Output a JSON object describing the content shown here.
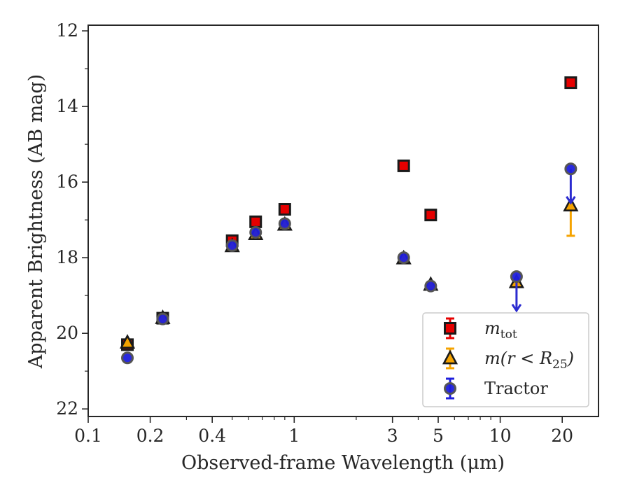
{
  "chart_data": {
    "type": "scatter",
    "xlabel": "Observed-frame Wavelength (μm)",
    "ylabel": "Apparent Brightness (AB mag)",
    "xscale": "log",
    "yaxis_inverted": true,
    "xlim": [
      0.1,
      30
    ],
    "ylim": [
      22.2,
      11.85
    ],
    "xticks": [
      0.1,
      0.2,
      0.4,
      1,
      3,
      5,
      10,
      20
    ],
    "xtick_labels": [
      "0.1",
      "0.2",
      "0.4",
      "1",
      "3",
      "5",
      "10",
      "20"
    ],
    "yticks": [
      12,
      14,
      16,
      18,
      20,
      22
    ],
    "ytick_labels": [
      "12",
      "14",
      "16",
      "18",
      "20",
      "22"
    ],
    "grid": false,
    "legend_position": "lower-right",
    "series": [
      {
        "name": "m_tot",
        "legend_label": "m",
        "legend_sub": "tot",
        "marker": "square",
        "color": "#e60000",
        "edge_color": "#1a1a1a",
        "points": [
          {
            "x": 0.155,
            "y": 20.3
          },
          {
            "x": 0.23,
            "y": 19.6
          },
          {
            "x": 0.5,
            "y": 17.55
          },
          {
            "x": 0.65,
            "y": 17.05
          },
          {
            "x": 0.9,
            "y": 16.72
          },
          {
            "x": 3.4,
            "y": 15.57
          },
          {
            "x": 4.6,
            "y": 16.87
          },
          {
            "x": 22,
            "y": 13.37
          }
        ]
      },
      {
        "name": "m(r < R25)",
        "legend_label": "m(r < R",
        "legend_sub": "25",
        "marker": "triangle",
        "color": "#f5a300",
        "edge_color": "#1a1a1a",
        "points": [
          {
            "x": 0.155,
            "y": 20.25
          },
          {
            "x": 0.23,
            "y": 19.6
          },
          {
            "x": 0.5,
            "y": 17.7
          },
          {
            "x": 0.65,
            "y": 17.38
          },
          {
            "x": 0.9,
            "y": 17.13
          },
          {
            "x": 3.4,
            "y": 18.02
          },
          {
            "x": 4.6,
            "y": 18.72
          },
          {
            "x": 12,
            "y": 18.65
          },
          {
            "x": 22,
            "y": 16.62,
            "err_low": 0.8
          }
        ]
      },
      {
        "name": "Tractor",
        "legend_label": "Tractor",
        "marker": "circle",
        "color": "#1f1fdc",
        "edge_color": "#555555",
        "points": [
          {
            "x": 0.155,
            "y": 20.65
          },
          {
            "x": 0.23,
            "y": 19.62
          },
          {
            "x": 0.5,
            "y": 17.68
          },
          {
            "x": 0.65,
            "y": 17.33
          },
          {
            "x": 0.9,
            "y": 17.1
          },
          {
            "x": 3.4,
            "y": 18.0
          },
          {
            "x": 4.6,
            "y": 18.75
          },
          {
            "x": 12,
            "y": 18.5,
            "limit_to": 19.4
          },
          {
            "x": 22,
            "y": 15.65,
            "limit_to": 16.55
          }
        ]
      }
    ]
  }
}
